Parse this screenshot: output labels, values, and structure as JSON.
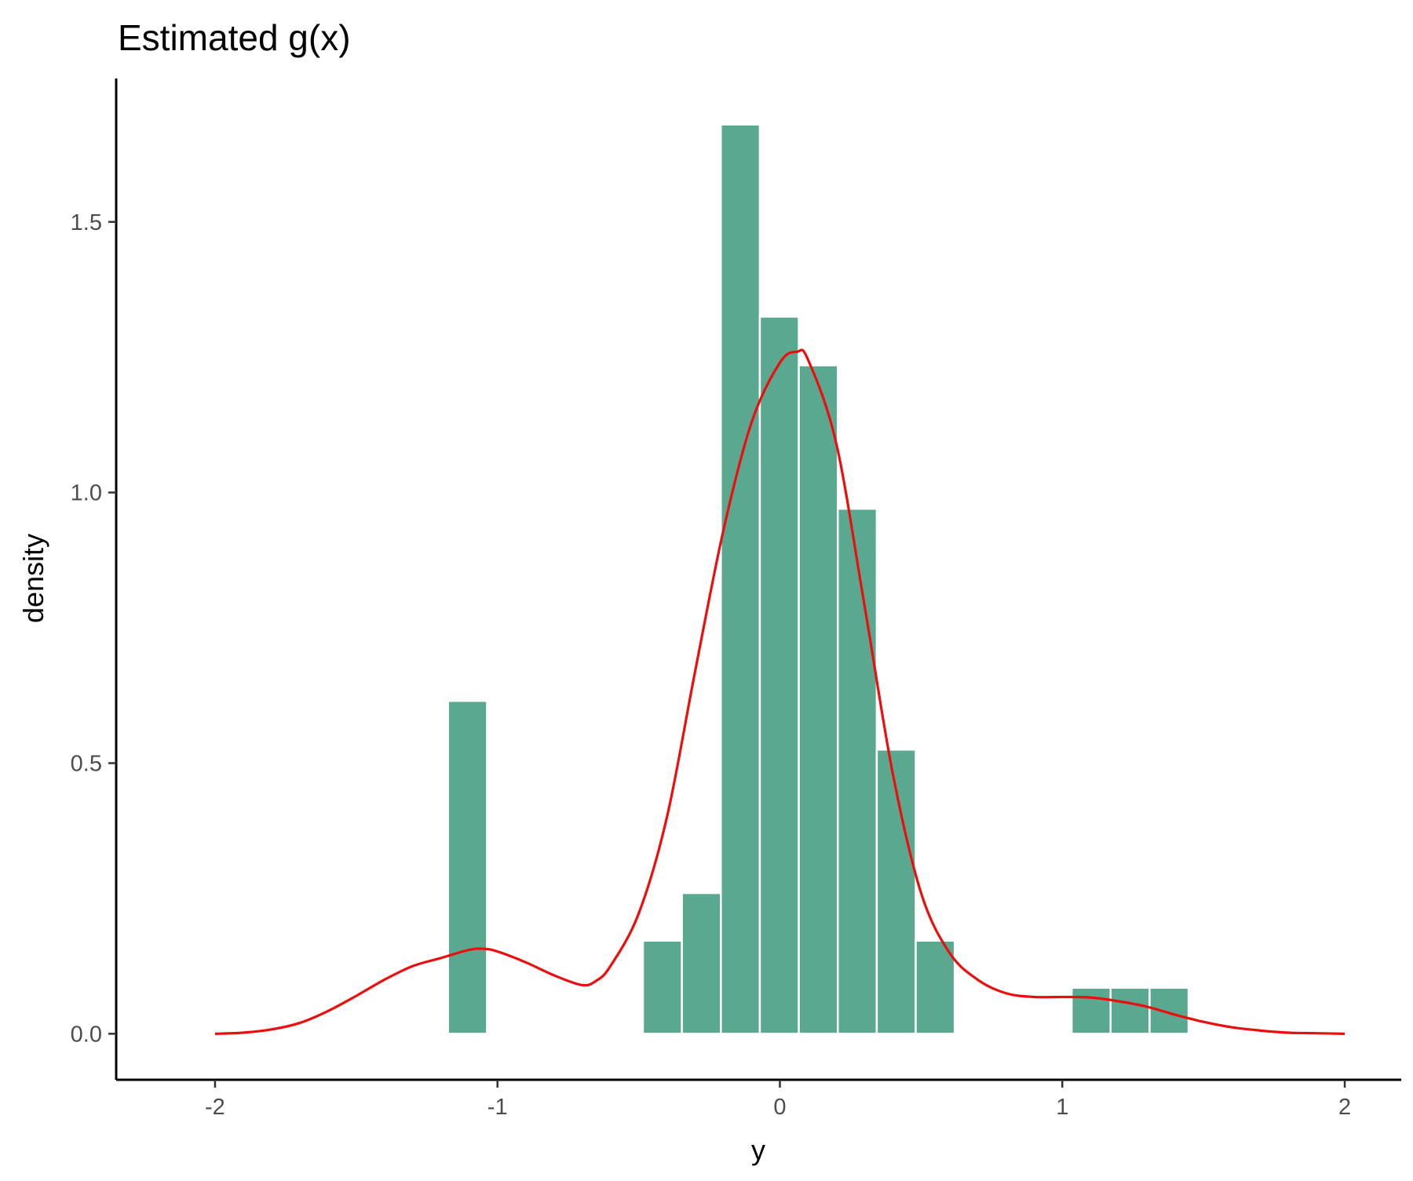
{
  "chart_data": {
    "type": "bar",
    "title": "Estimated g(x)",
    "xlabel": "y",
    "ylabel": "density",
    "xlim": [
      -2.35,
      2.2
    ],
    "ylim": [
      -0.085,
      1.765
    ],
    "x_ticks": [
      {
        "value": -2,
        "label": "-2"
      },
      {
        "value": -1,
        "label": "-1"
      },
      {
        "value": 0,
        "label": "0"
      },
      {
        "value": 1,
        "label": "1"
      },
      {
        "value": 2,
        "label": "2"
      }
    ],
    "y_ticks": [
      {
        "value": 0,
        "label": "0.0"
      },
      {
        "value": 0.5,
        "label": "0.5"
      },
      {
        "value": 1.0,
        "label": "1.0"
      },
      {
        "value": 1.5,
        "label": "1.5"
      }
    ],
    "grid": false,
    "histogram": {
      "name": "histogram",
      "bin_width": 0.138,
      "bins": [
        {
          "x0": -1.175,
          "x1": -1.037,
          "density": 0.615
        },
        {
          "x0": -0.485,
          "x1": -0.347,
          "density": 0.172
        },
        {
          "x0": -0.347,
          "x1": -0.209,
          "density": 0.26
        },
        {
          "x0": -0.209,
          "x1": -0.071,
          "density": 1.68
        },
        {
          "x0": -0.071,
          "x1": 0.067,
          "density": 1.325
        },
        {
          "x0": 0.067,
          "x1": 0.205,
          "density": 1.235
        },
        {
          "x0": 0.205,
          "x1": 0.343,
          "density": 0.97
        },
        {
          "x0": 0.343,
          "x1": 0.481,
          "density": 0.525
        },
        {
          "x0": 0.481,
          "x1": 0.619,
          "density": 0.172
        },
        {
          "x0": 1.033,
          "x1": 1.171,
          "density": 0.085
        },
        {
          "x0": 1.171,
          "x1": 1.309,
          "density": 0.085
        },
        {
          "x0": 1.309,
          "x1": 1.447,
          "density": 0.085
        }
      ]
    },
    "density_curve": {
      "name": "estimated g(x)",
      "x": [
        -2.0,
        -1.9,
        -1.8,
        -1.7,
        -1.6,
        -1.5,
        -1.4,
        -1.3,
        -1.2,
        -1.1,
        -1.05,
        -1.0,
        -0.9,
        -0.8,
        -0.7,
        -0.65,
        -0.6,
        -0.5,
        -0.4,
        -0.3,
        -0.2,
        -0.1,
        0.0,
        0.06,
        0.1,
        0.2,
        0.3,
        0.4,
        0.5,
        0.6,
        0.7,
        0.8,
        0.9,
        1.0,
        1.1,
        1.2,
        1.3,
        1.4,
        1.5,
        1.6,
        1.7,
        1.8,
        1.9,
        2.0
      ],
      "y": [
        0.0,
        0.002,
        0.008,
        0.02,
        0.042,
        0.07,
        0.1,
        0.125,
        0.14,
        0.155,
        0.157,
        0.152,
        0.132,
        0.108,
        0.09,
        0.098,
        0.125,
        0.222,
        0.4,
        0.67,
        0.93,
        1.13,
        1.24,
        1.26,
        1.245,
        1.09,
        0.79,
        0.48,
        0.26,
        0.15,
        0.1,
        0.075,
        0.068,
        0.068,
        0.067,
        0.06,
        0.05,
        0.035,
        0.022,
        0.012,
        0.006,
        0.002,
        0.001,
        0.0
      ]
    },
    "colors": {
      "bar_fill": "#5ba891",
      "bar_stroke": "#ffffff",
      "curve": "#ee0d0d",
      "axis": "#000000"
    }
  }
}
